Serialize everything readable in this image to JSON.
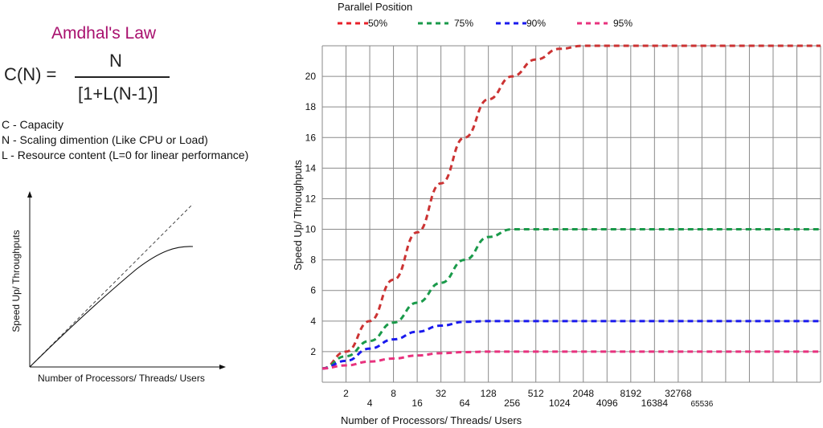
{
  "intro": {
    "title": "Amdhal's Law",
    "formula": {
      "lhs": "C(N) =",
      "numerator": "N",
      "denominator": "[1+L(N-1)]"
    },
    "definitions": [
      "C - Capacity",
      "N - Scaling dimention (Like CPU or Load)",
      "L - Resource content (L=0 for linear performance)"
    ]
  },
  "sketch": {
    "ylabel": "Speed Up/ Throughputs",
    "xlabel": "Number of Processors/ Threads/ Users"
  },
  "chart_data": {
    "type": "line",
    "legend_title": "Parallel Position",
    "legend_placement": "top",
    "xlabel": "Number of Processors/ Threads/ Users",
    "ylabel": "Speed Up/ Throughputs",
    "x_scale": "log2",
    "x": [
      1,
      2,
      4,
      8,
      16,
      32,
      64,
      128,
      256,
      512,
      1024,
      2048,
      4096,
      8192,
      16384,
      32768,
      65536,
      131072,
      262144,
      524288,
      1048576,
      2097152
    ],
    "x_tick_labels": [
      "2",
      "4",
      "8",
      "16",
      "32",
      "64",
      "128",
      "256",
      "512",
      "1024",
      "2048",
      "4096",
      "8192",
      "16384",
      "32768",
      "65536"
    ],
    "y_ticks": [
      2,
      4,
      6,
      8,
      10,
      12,
      14,
      16,
      18,
      20
    ],
    "ylim": [
      0,
      22
    ],
    "xlim_log2": [
      0,
      21
    ],
    "grid": true,
    "series": [
      {
        "name": "50%",
        "color": "#cc3333",
        "legend_color": "#e8202a",
        "values": [
          0.9,
          2,
          4,
          6.7,
          9.8,
          13,
          16,
          18.5,
          20,
          21.1,
          21.8,
          22,
          22,
          22,
          22,
          22,
          22,
          22,
          22,
          22,
          22,
          22
        ]
      },
      {
        "name": "75%",
        "color": "#1a9a4a",
        "legend_color": "#1a9a4a",
        "values": [
          0.9,
          1.7,
          2.7,
          3.9,
          5.2,
          6.5,
          8,
          9.5,
          10,
          10,
          10,
          10,
          10,
          10,
          10,
          10,
          10,
          10,
          10,
          10,
          10,
          10
        ]
      },
      {
        "name": "90%",
        "color": "#1a1aee",
        "legend_color": "#1a1aee",
        "values": [
          0.9,
          1.4,
          2.2,
          2.8,
          3.3,
          3.7,
          3.95,
          4,
          4,
          4,
          4,
          4,
          4,
          4,
          4,
          4,
          4,
          4,
          4,
          4,
          4,
          4
        ]
      },
      {
        "name": "95%",
        "color": "#e8327e",
        "legend_color": "#e8327e",
        "values": [
          0.9,
          1.1,
          1.35,
          1.55,
          1.75,
          1.9,
          1.97,
          2,
          2,
          2,
          2,
          2,
          2,
          2,
          2,
          2,
          2,
          2,
          2,
          2,
          2,
          2
        ]
      }
    ]
  }
}
